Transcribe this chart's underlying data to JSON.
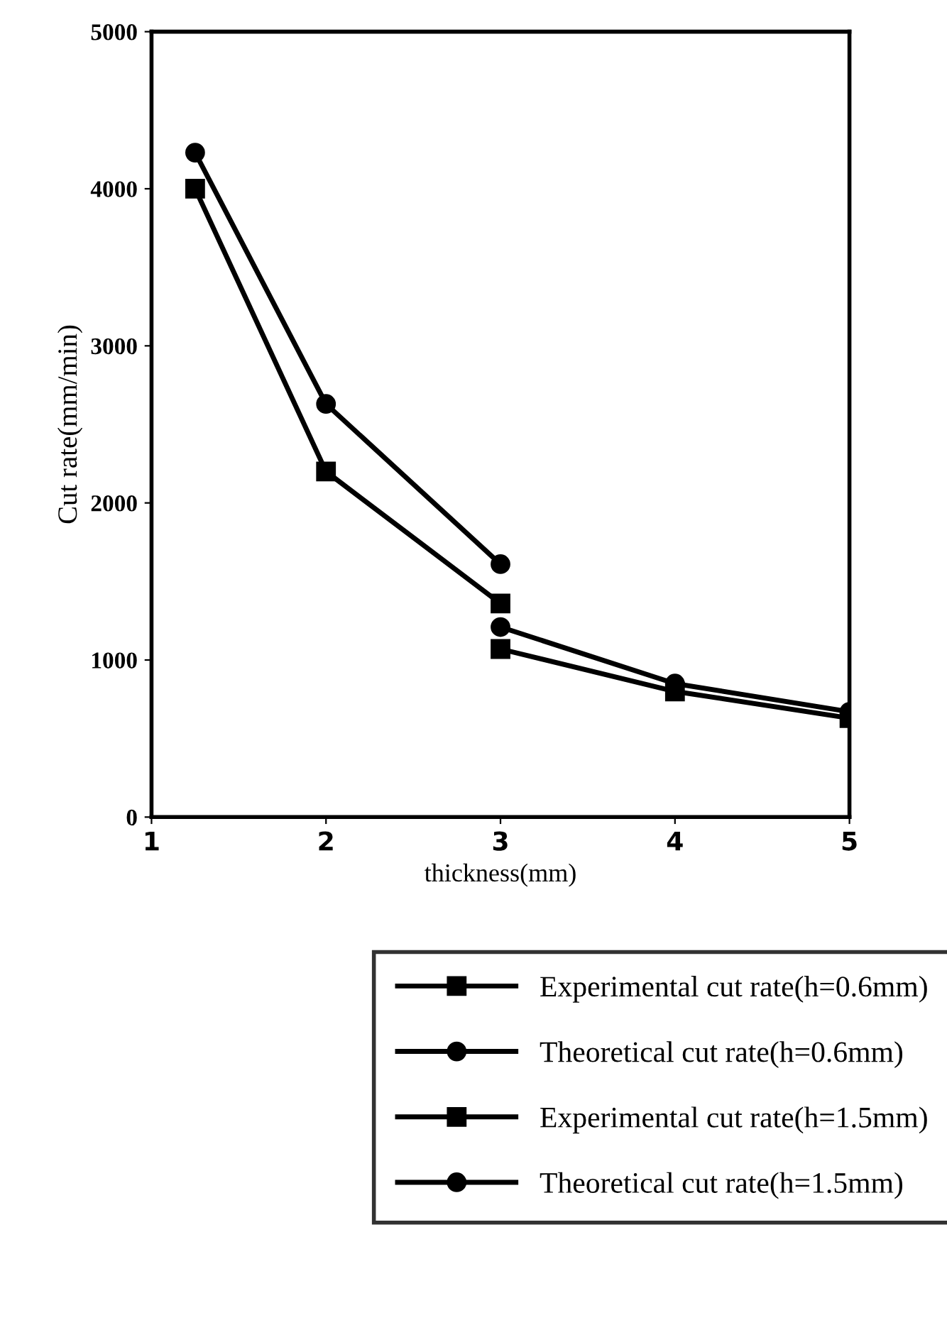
{
  "chart_data": {
    "type": "line",
    "xlabel": "thickness(mm)",
    "ylabel": "Cut rate(mm/min)",
    "xlim": [
      1,
      5
    ],
    "xticks": [
      1,
      2,
      3,
      4,
      5
    ],
    "ylim": [
      0,
      5000
    ],
    "yticks": [
      0,
      1000,
      2000,
      3000,
      4000,
      5000
    ],
    "grid": false,
    "legend": "bottom",
    "line_style": "solid",
    "series": [
      {
        "name": "Experimental cut rate(h=0.6mm)",
        "color": "#000000",
        "marker": "square",
        "x": [
          1.25,
          2,
          3
        ],
        "values": [
          4000,
          2200,
          1360
        ]
      },
      {
        "name": "Theoretical cut rate(h=0.6mm)",
        "color": "#000000",
        "marker": "circle",
        "x": [
          1.25,
          2,
          3
        ],
        "values": [
          4230,
          2630,
          1610
        ]
      },
      {
        "name": "Experimental cut rate(h=1.5mm)",
        "color": "#000000",
        "marker": "square",
        "x": [
          3,
          4,
          5
        ],
        "values": [
          1070,
          800,
          630
        ]
      },
      {
        "name": "Theoretical cut rate(h=1.5mm)",
        "color": "#000000",
        "marker": "circle",
        "x": [
          3,
          4,
          5
        ],
        "values": [
          1210,
          850,
          670
        ]
      }
    ]
  }
}
